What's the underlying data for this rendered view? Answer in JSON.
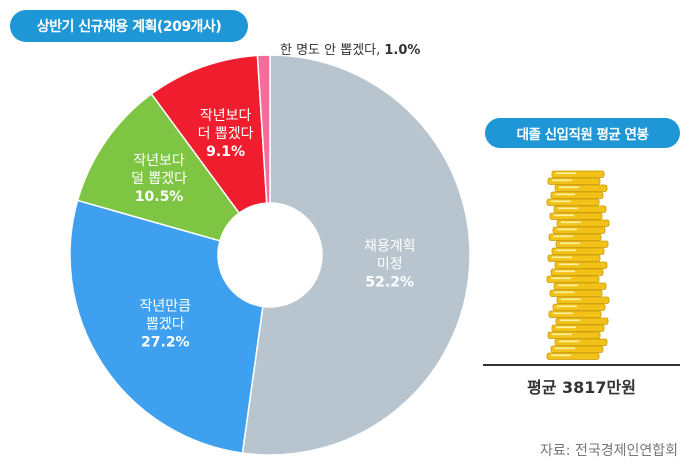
{
  "title": "상반기 신규채용 계획(209개사)",
  "side_title": "대졸 신입직원 평균 연봉",
  "average_label": "평균  3817만원",
  "source": "자료: 전국경제인연합회",
  "colors": {
    "accent": "#1f97d6",
    "slice_gray": "#b8c5cf",
    "slice_blue": "#3ea0ee",
    "slice_green": "#7ec544",
    "slice_red": "#ef1d2d",
    "slice_pink": "#f26f9c",
    "coin": "#f2c218"
  },
  "chart_data": {
    "type": "pie",
    "donut": true,
    "slices": [
      {
        "label": [
          "채용계획",
          "미정"
        ],
        "value": 52.2,
        "pct": "52.2%",
        "color": "#b8c5cf"
      },
      {
        "label": [
          "작년만큼",
          "뽑겠다"
        ],
        "value": 27.2,
        "pct": "27.2%",
        "color": "#3ea0ee"
      },
      {
        "label": [
          "작년보다",
          "덜 뽑겠다"
        ],
        "value": 10.5,
        "pct": "10.5%",
        "color": "#7ec544"
      },
      {
        "label": [
          "작년보다",
          "더 뽑겠다"
        ],
        "value": 9.1,
        "pct": "9.1%",
        "color": "#ef1d2d"
      },
      {
        "label": [
          "한 명도 안 뽑겠다,"
        ],
        "value": 1.0,
        "pct": "1.0%",
        "color": "#f26f9c",
        "outside": true
      }
    ]
  }
}
